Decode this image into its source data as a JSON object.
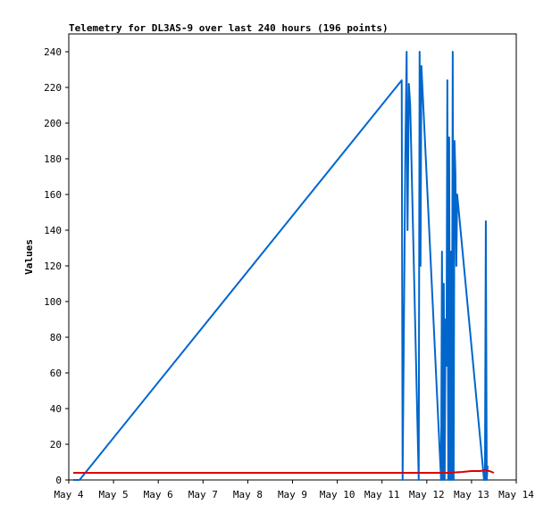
{
  "chart_data": {
    "type": "line",
    "title": "Telemetry for DL3AS-9 over last 240 hours (196 points)",
    "xlabel": "",
    "ylabel": "Values",
    "xlim": [
      4.0,
      14.0
    ],
    "ylim": [
      0,
      250
    ],
    "x_ticks": [
      {
        "x": 4,
        "label": "May 4"
      },
      {
        "x": 5,
        "label": "May 5"
      },
      {
        "x": 6,
        "label": "May 6"
      },
      {
        "x": 7,
        "label": "May 7"
      },
      {
        "x": 8,
        "label": "May 8"
      },
      {
        "x": 9,
        "label": "May 9"
      },
      {
        "x": 10,
        "label": "May 10"
      },
      {
        "x": 11,
        "label": "May 11"
      },
      {
        "x": 12,
        "label": "May 12"
      },
      {
        "x": 13,
        "label": "May 13"
      },
      {
        "x": 14,
        "label": "May 14"
      }
    ],
    "y_ticks": [
      0,
      20,
      40,
      60,
      80,
      100,
      120,
      140,
      160,
      180,
      200,
      220,
      240
    ],
    "grid": false,
    "legend": "none",
    "series": [
      {
        "color": "#0066cc",
        "x": [
          4.1,
          4.24,
          11.44,
          11.46,
          11.48,
          11.52,
          11.55,
          11.57,
          11.6,
          11.63,
          11.82,
          11.84,
          11.86,
          11.88,
          12.32,
          12.34,
          12.36,
          12.38,
          12.4,
          12.42,
          12.44,
          12.46,
          12.48,
          12.5,
          12.52,
          12.54,
          12.56,
          12.58,
          12.6,
          12.62,
          12.64,
          12.66,
          12.68,
          13.28,
          13.3,
          13.32,
          13.34,
          13.36
        ],
        "y": [
          0,
          0,
          224,
          0,
          60,
          180,
          240,
          140,
          222,
          210,
          0,
          240,
          120,
          232,
          0,
          128,
          0,
          110,
          0,
          90,
          64,
          224,
          0,
          192,
          0,
          128,
          0,
          240,
          0,
          190,
          172,
          120,
          160,
          0,
          0,
          145,
          0,
          8
        ]
      },
      {
        "color": "#dd0000",
        "x": [
          4.1,
          5.0,
          6.0,
          7.0,
          8.0,
          9.0,
          10.0,
          11.0,
          12.0,
          12.5,
          12.8,
          13.0,
          13.2,
          13.3,
          13.4,
          13.5
        ],
        "y": [
          4,
          4,
          4,
          4,
          4,
          4,
          4,
          4,
          4,
          4,
          4.5,
          5,
          5,
          5.5,
          5,
          4
        ]
      }
    ]
  }
}
